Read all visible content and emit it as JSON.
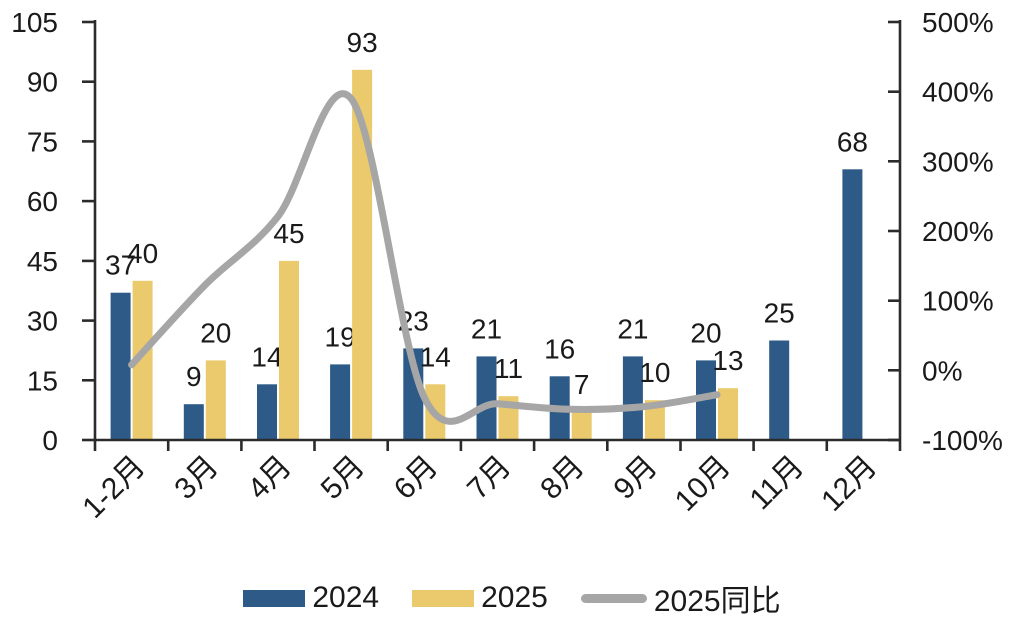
{
  "chart_data": {
    "type": "combo-bar-line",
    "title": "",
    "categories": [
      "1-2月",
      "3月",
      "4月",
      "5月",
      "6月",
      "7月",
      "8月",
      "9月",
      "10月",
      "11月",
      "12月"
    ],
    "series": [
      {
        "name": "2024",
        "type": "bar",
        "axis": "left",
        "color": "#2D5A87",
        "values": [
          37,
          9,
          14,
          19,
          23,
          21,
          16,
          21,
          20,
          25,
          68
        ]
      },
      {
        "name": "2025",
        "type": "bar",
        "axis": "left",
        "color": "#EACA6C",
        "values": [
          40,
          20,
          45,
          93,
          14,
          11,
          7,
          10,
          13,
          null,
          null
        ]
      },
      {
        "name": "2025同比",
        "type": "line",
        "axis": "right",
        "color": "#A6A6A6",
        "unit": "%",
        "values": [
          8,
          122,
          221,
          390,
          -39,
          -48,
          -56,
          -52,
          -35,
          null,
          null
        ]
      }
    ],
    "left_axis": {
      "min": 0,
      "max": 105,
      "step": 15,
      "ticks": [
        "0",
        "15",
        "30",
        "45",
        "60",
        "75",
        "90",
        "105"
      ]
    },
    "right_axis": {
      "min": -100,
      "max": 500,
      "step": 100,
      "ticks": [
        "-100%",
        "0%",
        "100%",
        "200%",
        "300%",
        "400%",
        "500%"
      ]
    },
    "legend": {
      "position": "bottom",
      "entries": [
        "2024",
        "2025",
        "2025同比"
      ]
    },
    "grid": false
  },
  "colors": {
    "bar_2024": "#2D5A87",
    "bar_2025": "#EACA6C",
    "line_yoy": "#A6A6A6",
    "axis": "#2B2B2B",
    "text": "#1A1A1A",
    "background": "#FFFFFF"
  }
}
